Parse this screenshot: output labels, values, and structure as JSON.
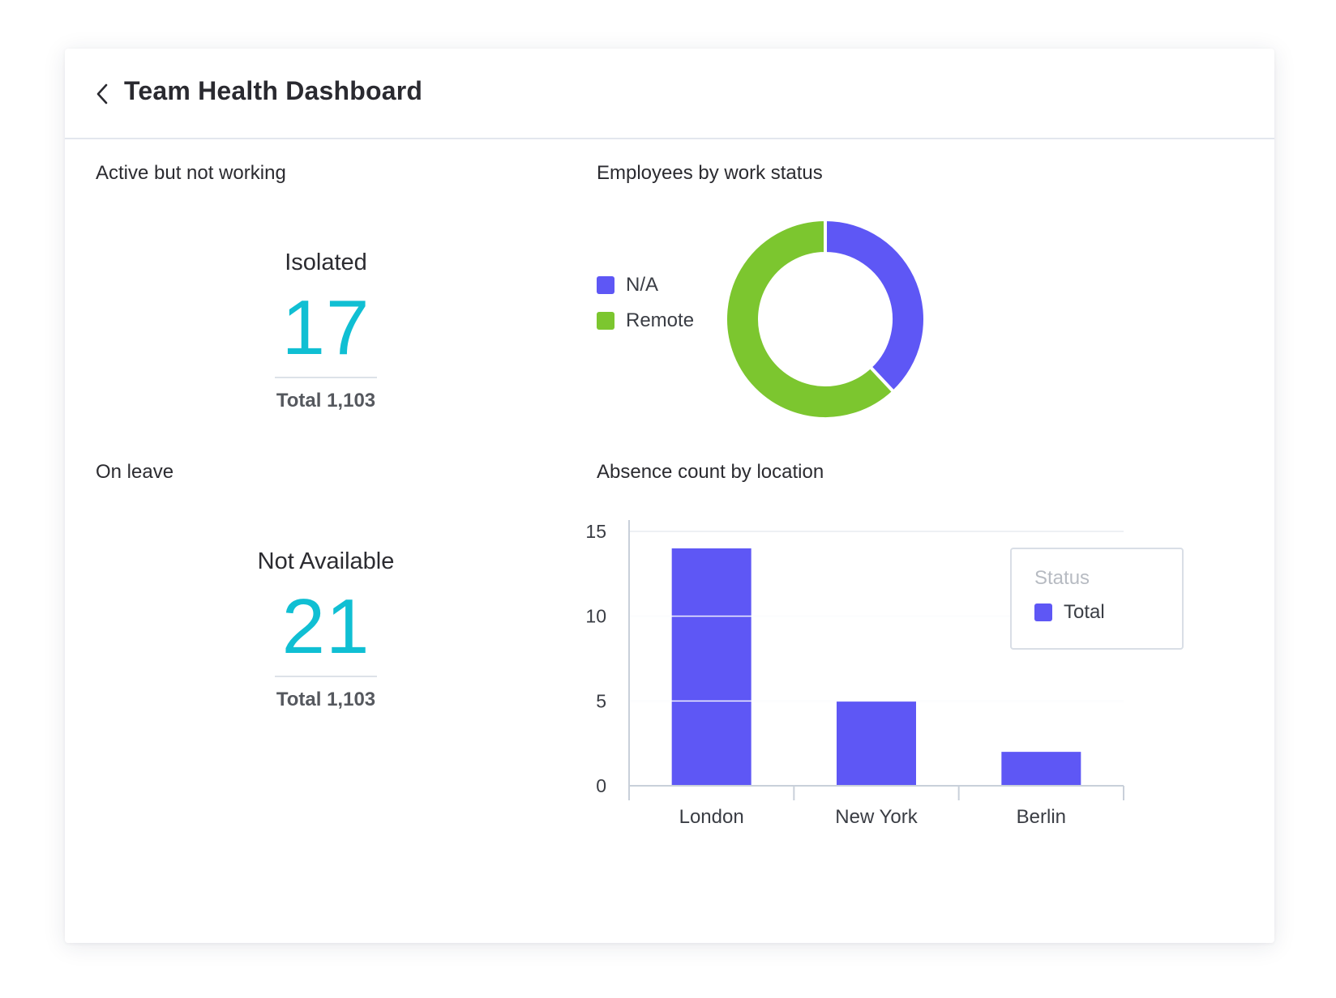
{
  "header": {
    "title": "Team Health Dashboard"
  },
  "panels": {
    "active_not_working": {
      "title": "Active but not working",
      "label": "Isolated",
      "value": "17",
      "total": "Total 1,103"
    },
    "on_leave": {
      "title": "On leave",
      "label": "Not Available",
      "value": "21",
      "total": "Total 1,103"
    },
    "work_status": {
      "title": "Employees by work status",
      "legend": [
        {
          "label": "N/A",
          "color": "#5e57f5"
        },
        {
          "label": "Remote",
          "color": "#7cc62f"
        }
      ]
    },
    "absence": {
      "title": "Absence count by location",
      "legend_title": "Status",
      "legend_item": "Total"
    }
  },
  "icons": {
    "back": "chevron-left-icon"
  },
  "colors": {
    "accent_value": "#10bfd3",
    "na": "#5e57f5",
    "remote": "#7cc62f",
    "bar": "#5e57f5"
  },
  "chart_data": [
    {
      "type": "pie",
      "title": "Employees by work status",
      "donut": true,
      "slices": [
        {
          "label": "N/A",
          "value": 38,
          "color": "#5e57f5"
        },
        {
          "label": "Remote",
          "value": 62,
          "color": "#7cc62f"
        }
      ],
      "legend": "left"
    },
    {
      "type": "bar",
      "title": "Absence count by location",
      "categories": [
        "London",
        "New York",
        "Berlin"
      ],
      "series": [
        {
          "name": "Total",
          "values": [
            14,
            5,
            2
          ],
          "color": "#5e57f5"
        }
      ],
      "ylim": [
        0,
        15
      ],
      "yticks": [
        0,
        5,
        10,
        15
      ],
      "grid": true,
      "legend": "top-right",
      "legend_title": "Status"
    }
  ]
}
